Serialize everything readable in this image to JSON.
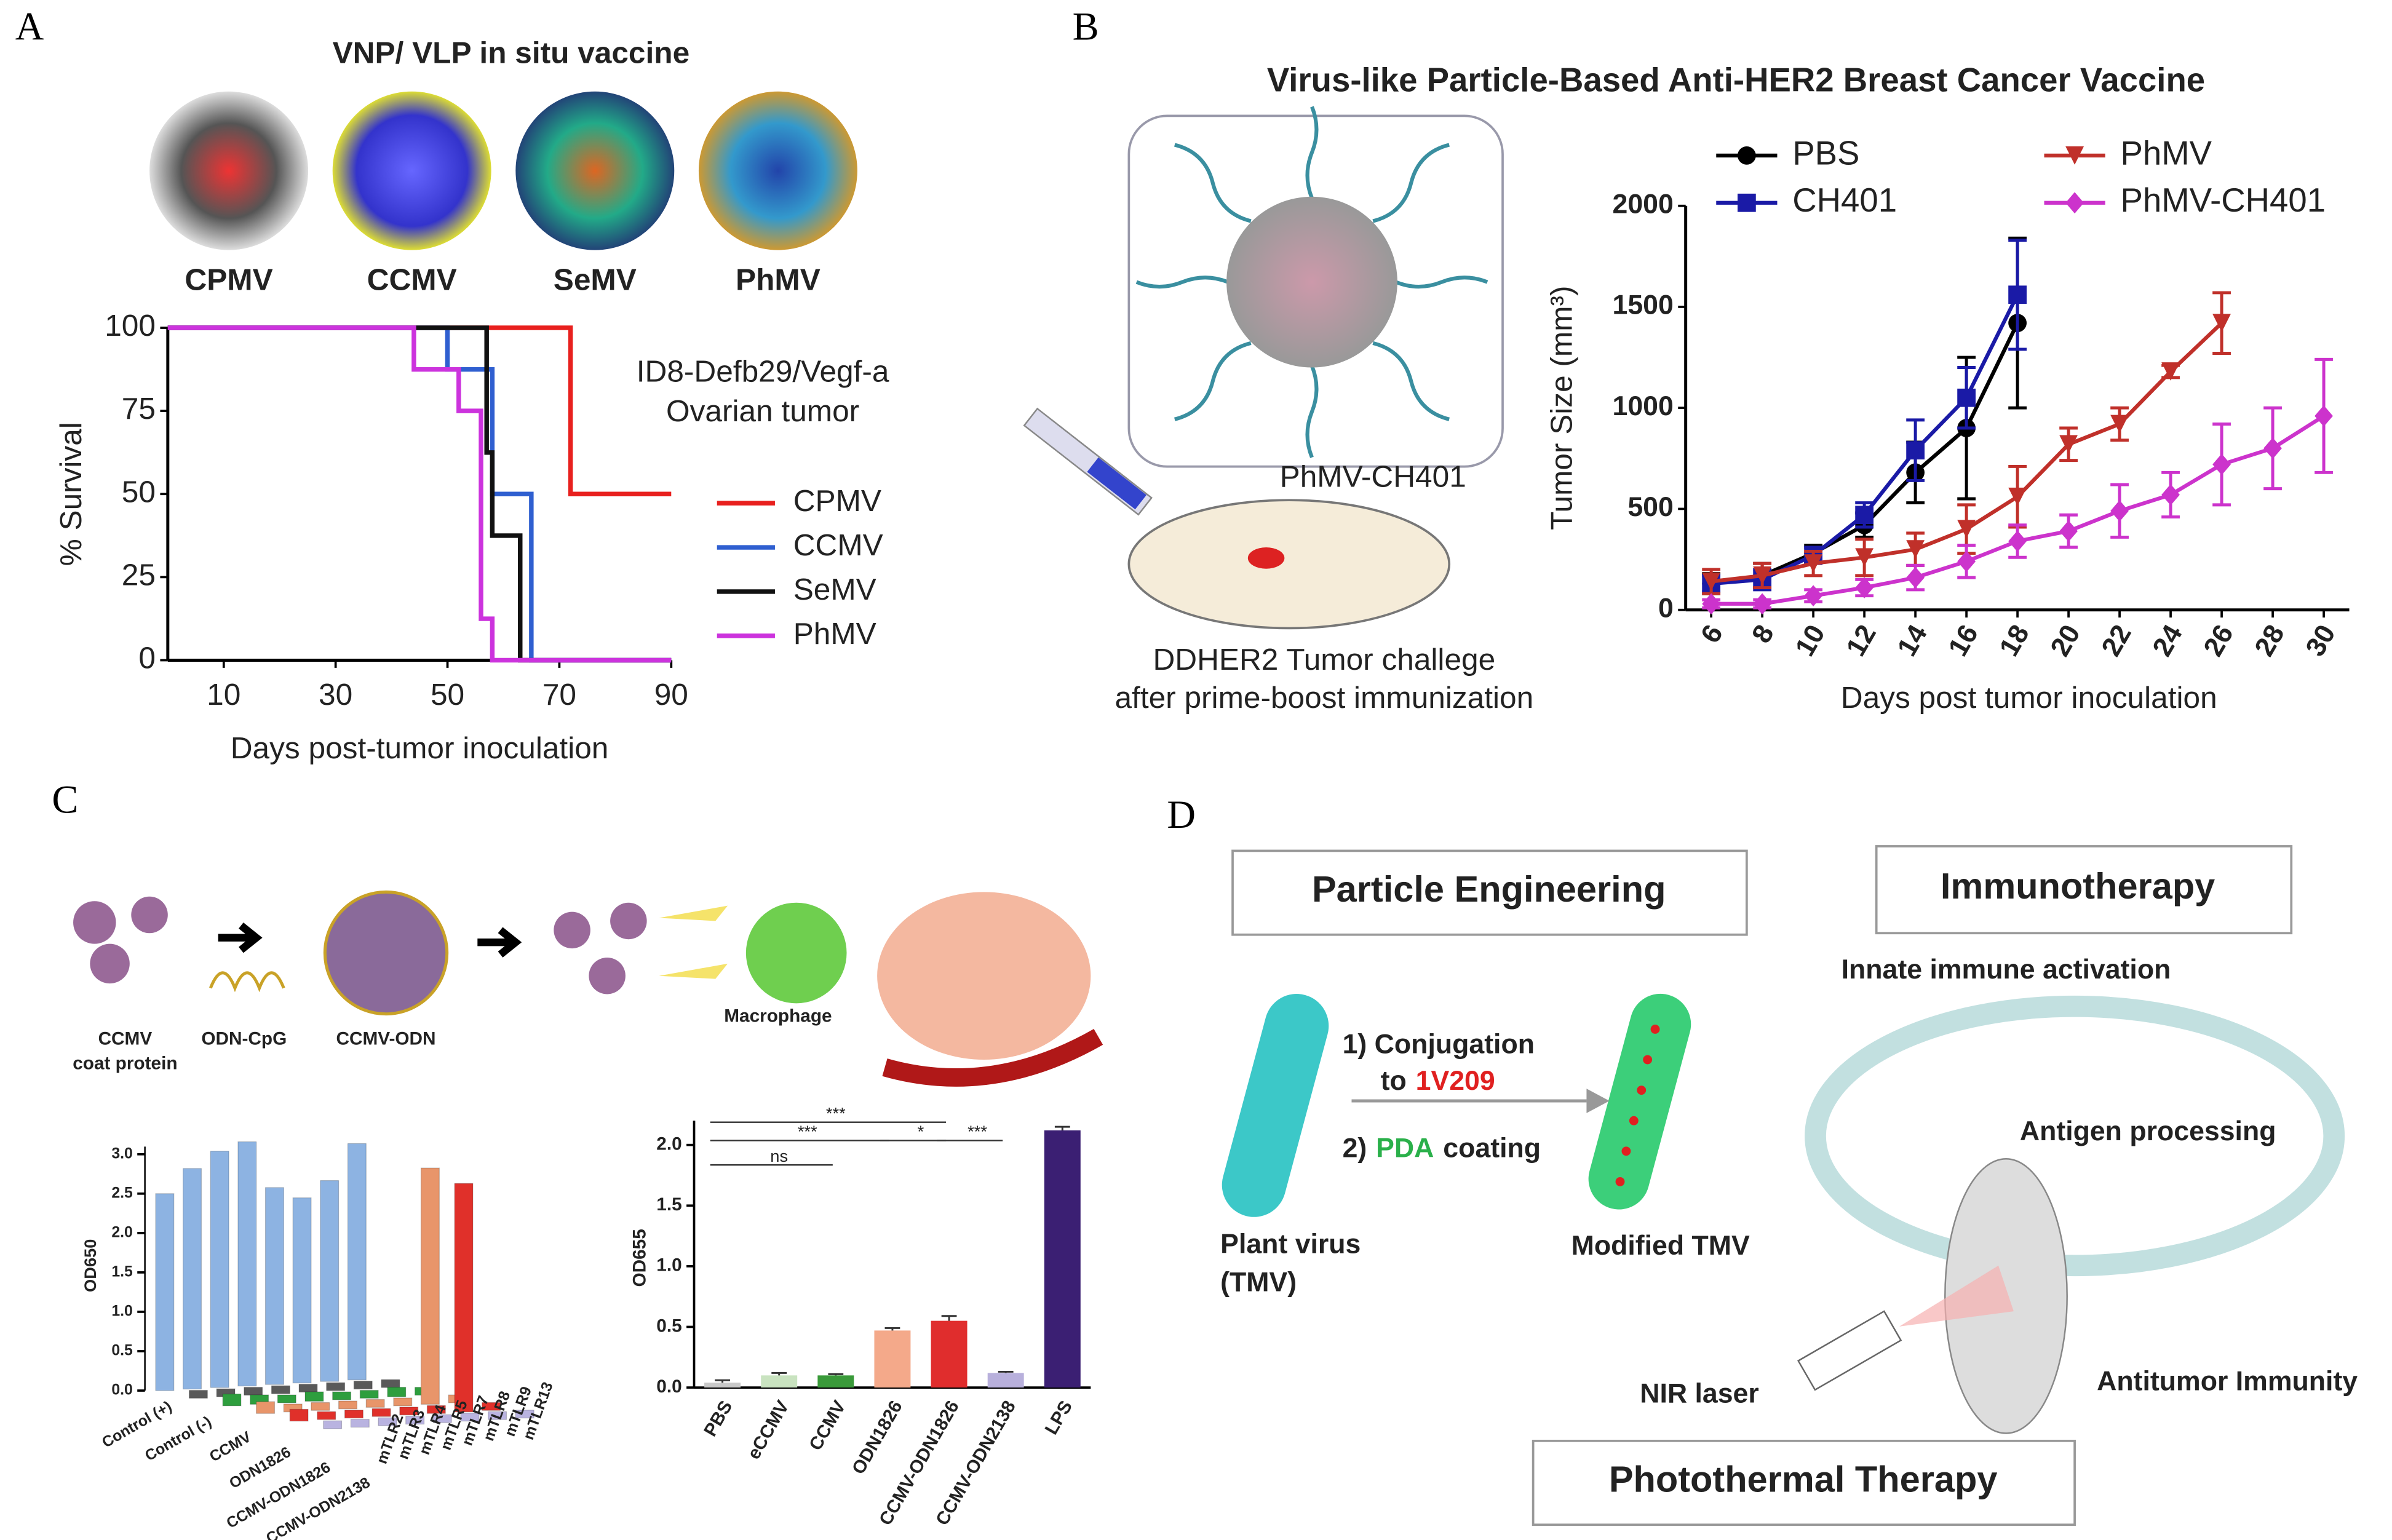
{
  "panels": {
    "A": {
      "label": "A",
      "title": "VNP/ VLP in situ vaccine",
      "viruses": [
        "CPMV",
        "CCMV",
        "SeMV",
        "PhMV"
      ]
    },
    "B": {
      "label": "B",
      "title": "Virus-like Particle-Based Anti-HER2 Breast Cancer Vaccine",
      "construct": "PhMV-CH401",
      "caption": [
        "DDHER2 Tumor challege",
        "after prime-boost immunization"
      ]
    },
    "C": {
      "label": "C",
      "coat": [
        "CCMV",
        "coat protein"
      ],
      "odn": "ODN-CpG",
      "complex": "CCMV-ODN",
      "macrophage": "Macrophage"
    },
    "D": {
      "label": "D",
      "engineering": "Particle Engineering",
      "immunotherapy": "Immunotherapy",
      "photothermal": "Photothermal Therapy",
      "step1a": "1) Conjugation",
      "step1b": "to",
      "step1c": "1V209",
      "step2a": "2)",
      "step2b": "PDA",
      "step2c": "coating",
      "plant": [
        "Plant virus",
        "(TMV)"
      ],
      "modified": "Modified TMV",
      "innate": "Innate immune activation",
      "antigen": "Antigen processing",
      "antitumor": "Antitumor Immunity",
      "laser": "NIR laser"
    }
  },
  "chart_data": [
    {
      "type": "line",
      "xlabel": "Days post-tumor inoculation",
      "ylabel": "% Survival",
      "annotation": [
        "ID8-Defb29/Vegf-a",
        "Ovarian tumor"
      ],
      "xlim": [
        0,
        90
      ],
      "xticks": [
        10,
        30,
        50,
        70,
        90
      ],
      "ylim": [
        0,
        100
      ],
      "yticks": [
        0,
        25,
        50,
        75,
        100
      ],
      "series": [
        {
          "name": "CPMV",
          "color": "#e8201e",
          "x": [
            0,
            72,
            72,
            90
          ],
          "values": [
            100,
            100,
            50,
            50
          ]
        },
        {
          "name": "CCMV",
          "color": "#2f5fd0",
          "x": [
            0,
            50,
            50,
            58,
            58,
            65,
            65,
            90
          ],
          "values": [
            100,
            100,
            87.5,
            87.5,
            50,
            50,
            0,
            0
          ]
        },
        {
          "name": "SeMV",
          "color": "#111111",
          "x": [
            0,
            57,
            57,
            58,
            58,
            63,
            63,
            90
          ],
          "values": [
            100,
            100,
            62.5,
            62.5,
            37.5,
            37.5,
            0,
            0
          ]
        },
        {
          "name": "PhMV",
          "color": "#cc33dd",
          "x": [
            0,
            44,
            44,
            52,
            52,
            56,
            56,
            58,
            58,
            90
          ],
          "values": [
            100,
            100,
            87.5,
            87.5,
            75,
            75,
            12.5,
            12.5,
            0,
            0
          ]
        }
      ]
    },
    {
      "type": "line",
      "xlabel": "Days post tumor inoculation",
      "ylabel": "Tumor Size (mm³)",
      "x": [
        6,
        8,
        10,
        12,
        14,
        16,
        18,
        20,
        22,
        24,
        26,
        28,
        30
      ],
      "xlim": [
        5,
        31
      ],
      "xticks": [
        6,
        8,
        10,
        12,
        14,
        16,
        18,
        20,
        22,
        24,
        26,
        28,
        30
      ],
      "ylim": [
        0,
        2000
      ],
      "yticks": [
        0,
        500,
        1000,
        1500,
        2000
      ],
      "series": [
        {
          "name": "PBS",
          "color": "#000000",
          "marker": "circle",
          "values": [
            130,
            170,
            280,
            420,
            680,
            900,
            1420,
            null,
            null,
            null,
            null,
            null,
            null
          ],
          "errors": [
            50,
            60,
            40,
            60,
            150,
            350,
            420,
            null,
            null,
            null,
            null,
            null,
            null
          ]
        },
        {
          "name": "CH401",
          "color": "#1a1aa6",
          "marker": "square",
          "values": [
            130,
            150,
            270,
            470,
            790,
            1050,
            1560,
            null,
            null,
            null,
            null,
            null,
            null
          ],
          "errors": [
            40,
            50,
            40,
            60,
            150,
            150,
            270,
            null,
            null,
            null,
            null,
            null,
            null
          ]
        },
        {
          "name": "PhMV",
          "color": "#c0302a",
          "marker": "triangle",
          "values": [
            140,
            170,
            230,
            260,
            300,
            400,
            560,
            820,
            920,
            1180,
            1420,
            null,
            null
          ],
          "errors": [
            60,
            60,
            60,
            90,
            80,
            120,
            150,
            80,
            80,
            30,
            150,
            null,
            null
          ]
        },
        {
          "name": "PhMV-CH401",
          "color": "#cc33cc",
          "marker": "diamond",
          "values": [
            30,
            30,
            70,
            110,
            160,
            240,
            340,
            390,
            490,
            570,
            720,
            800,
            960
          ],
          "errors": [
            20,
            20,
            30,
            40,
            60,
            80,
            80,
            80,
            130,
            110,
            200,
            200,
            280
          ]
        }
      ]
    },
    {
      "type": "bar3d",
      "ylabel": "OD650",
      "categories": [
        "mTLR2",
        "mTLR3",
        "mTLR4",
        "mTLR5",
        "mTLR7",
        "mTLR8",
        "mTLR9",
        "mTLR13"
      ],
      "ylim": [
        0,
        3.0
      ],
      "yticks": [
        {
          "value": 0,
          "label": "0.0"
        },
        {
          "value": 0.5,
          "label": "0.5"
        },
        {
          "value": 1,
          "label": "1.0"
        },
        {
          "value": 1.5,
          "label": "1.5"
        },
        {
          "value": 2,
          "label": "2.0"
        },
        {
          "value": 2.5,
          "label": "2.5"
        },
        {
          "value": 3,
          "label": "3.0"
        }
      ],
      "series": [
        {
          "name": "Control (+)",
          "color": "#8db3e2",
          "values": [
            2.5,
            2.8,
            3.0,
            3.1,
            2.5,
            2.35,
            2.55,
            3.0
          ]
        },
        {
          "name": "Control (-)",
          "color": "#595959",
          "values": [
            0.1,
            0.1,
            0.1,
            0.1,
            0.1,
            0.1,
            0.1,
            0.1
          ]
        },
        {
          "name": "CCMV",
          "color": "#2e9e3e",
          "values": [
            0.15,
            0.12,
            0.1,
            0.12,
            0.1,
            0.1,
            0.12,
            0.1
          ]
        },
        {
          "name": "ODN1826",
          "color": "#e8956a",
          "values": [
            0.15,
            0.1,
            0.1,
            0.1,
            0.1,
            0.1,
            3.0,
            0.1
          ]
        },
        {
          "name": "CCMV-ODN1826",
          "color": "#e0302a",
          "values": [
            0.15,
            0.1,
            0.1,
            0.1,
            0.1,
            0.1,
            2.9,
            0.1
          ]
        },
        {
          "name": "CCMV-ODN2138",
          "color": "#b9b3e0",
          "values": [
            0.1,
            0.1,
            0.1,
            0.1,
            0.1,
            0.1,
            0.1,
            0.1
          ]
        }
      ]
    },
    {
      "type": "bar",
      "ylabel": "OD655",
      "categories": [
        "PBS",
        "eCCMV",
        "CCMV",
        "ODN1826",
        "CCMV-ODN1826",
        "CCMV-ODN2138",
        "LPS"
      ],
      "values": [
        0.04,
        0.1,
        0.1,
        0.47,
        0.55,
        0.12,
        2.12
      ],
      "errors": [
        0.02,
        0.02,
        0.01,
        0.02,
        0.04,
        0.01,
        0.03
      ],
      "colors": [
        "#c8c8c8",
        "#c9e3c0",
        "#3a9a3a",
        "#f4a98a",
        "#e02d2d",
        "#b8b0dc",
        "#3b1f73"
      ],
      "ylim": [
        0,
        2.2
      ],
      "yticks": [
        {
          "value": 0,
          "label": "0.0"
        },
        {
          "value": 0.5,
          "label": "0.5"
        },
        {
          "value": 1,
          "label": "1.0"
        },
        {
          "value": 1.5,
          "label": "1.5"
        },
        {
          "value": 2,
          "label": "2.0"
        }
      ],
      "annotations": [
        "***",
        "***",
        "ns",
        "*",
        "***"
      ]
    }
  ]
}
